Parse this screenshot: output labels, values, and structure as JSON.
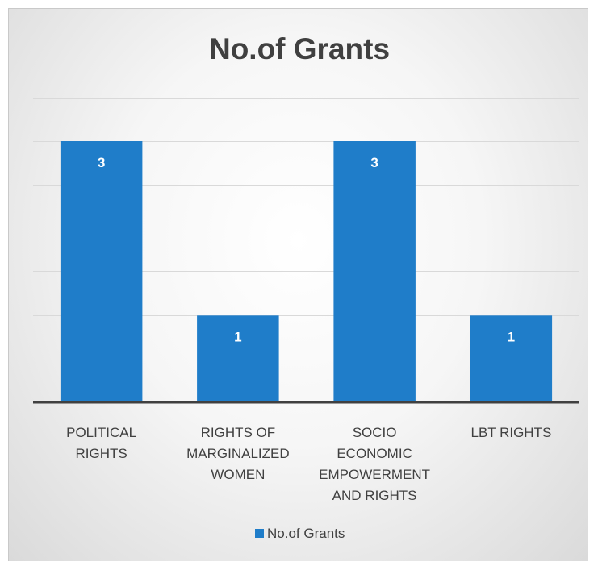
{
  "chart_data": {
    "type": "bar",
    "title": "No.of Grants",
    "categories": [
      [
        "POLITICAL",
        "RIGHTS"
      ],
      [
        "RIGHTS OF",
        "MARGINALIZED",
        "WOMEN"
      ],
      [
        "SOCIO",
        "ECONOMIC",
        "EMPOWERMENT",
        "AND RIGHTS"
      ],
      [
        "LBT RIGHTS"
      ]
    ],
    "series": [
      {
        "name": "No.of Grants",
        "values": [
          3,
          1,
          3,
          1
        ],
        "color": "#1f7dc9"
      }
    ],
    "ylim": [
      0,
      3.5
    ],
    "y_grid_step": 0.5,
    "y_tick_labels_shown": false,
    "grid": true,
    "data_labels": true,
    "legend": "bottom"
  }
}
